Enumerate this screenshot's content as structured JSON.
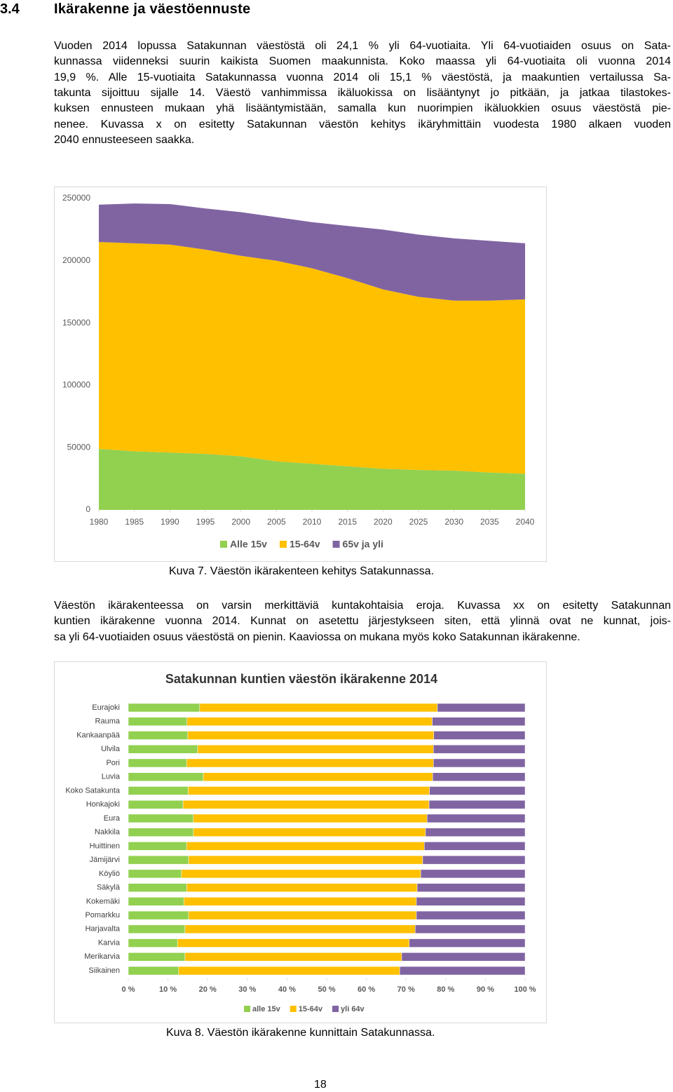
{
  "header": {
    "number": "3.4",
    "title": "Ikärakenne ja väestöennuste"
  },
  "paragraphs": [
    [
      "Vuoden 2014 lopussa Satakunnan väestöstä oli 24,1 % yli 64-vuotiaita. Yli 64-vuotiaiden osuus on Sata-",
      "kunnassa viidenneksi suurin kaikista Suomen maakunnista. Koko maassa yli 64-vuotiaita oli vuonna 2014",
      "19,9 %. Alle 15-vuotiaita Satakunnassa vuonna 2014 oli 15,1 % väestöstä, ja maakuntien vertailussa Sa-",
      "takunta sijoittuu sijalle 14. Väestö vanhimmissa ikäluokissa on lisääntynyt jo pitkään, ja jatkaa tilastokes-",
      "kuksen ennusteen mukaan yhä lisääntymistään, samalla kun nuorimpien ikäluokkien osuus väestöstä pie-",
      "nenee. Kuvassa x on esitetty Satakunnan väestön kehitys ikäryhmittäin vuodesta 1980 alkaen vuoden",
      "2040 ennusteeseen saakka."
    ],
    [
      "Väestön ikärakenteessa on varsin merkittäviä kuntakohtaisia eroja. Kuvassa xx on esitetty Satakunnan",
      "kuntien ikärakenne vuonna 2014. Kunnat on asetettu järjestykseen siten, että ylinnä ovat ne kunnat, jois-",
      "sa yli 64-vuotiaiden osuus väestöstä on pienin. Kaaviossa on mukana myös koko Satakunnan ikärakenne."
    ]
  ],
  "chart_data": [
    {
      "type": "area",
      "stacked": true,
      "x": [
        1980,
        1985,
        1990,
        1995,
        2000,
        2005,
        2010,
        2015,
        2020,
        2025,
        2030,
        2035,
        2040
      ],
      "xlim": [
        1980,
        2040
      ],
      "xticks": [
        1980,
        1985,
        1990,
        1995,
        2000,
        2005,
        2010,
        2015,
        2020,
        2025,
        2030,
        2035,
        2040
      ],
      "ylim": [
        0,
        250000
      ],
      "yticks": [
        0,
        50000,
        100000,
        150000,
        200000,
        250000
      ],
      "grid": false,
      "legend": "bottom",
      "series": [
        {
          "name": "Alle 15v",
          "color": "#92d050",
          "values": [
            49000,
            47000,
            46000,
            45000,
            43000,
            39000,
            37000,
            35000,
            33000,
            32000,
            31500,
            30000,
            29000
          ]
        },
        {
          "name": "15-64v",
          "color": "#ffc000",
          "values": [
            166000,
            167000,
            167000,
            164000,
            161000,
            161000,
            157000,
            151000,
            144000,
            139000,
            136500,
            138000,
            140000
          ]
        },
        {
          "name": "65v ja yli",
          "color": "#8064a2",
          "values": [
            30000,
            32000,
            32500,
            33000,
            35000,
            35000,
            37000,
            42000,
            48000,
            50000,
            50000,
            48000,
            45000
          ]
        }
      ]
    },
    {
      "type": "bar",
      "orientation": "horizontal",
      "stacked": true,
      "title": "Satakunnan kuntien väestön ikärakenne 2014",
      "categories": [
        "Eurajoki",
        "Rauma",
        "Kankaanpää",
        "Ulvila",
        "Pori",
        "Luvia",
        "Koko Satakunta",
        "Honkajoki",
        "Eura",
        "Nakkila",
        "Huittinen",
        "Jämijärvi",
        "Köyliö",
        "Säkylä",
        "Kokemäki",
        "Pomarkku",
        "Harjavalta",
        "Karvia",
        "Merikarvia",
        "Siikainen"
      ],
      "xlim": [
        0,
        100
      ],
      "xticks": [
        {
          "value": 0,
          "label": "0 %"
        },
        {
          "value": 10,
          "label": "10 %"
        },
        {
          "value": 20,
          "label": "20 %"
        },
        {
          "value": 30,
          "label": "30 %"
        },
        {
          "value": 40,
          "label": "40 %"
        },
        {
          "value": 50,
          "label": "50 %"
        },
        {
          "value": 60,
          "label": "60 %"
        },
        {
          "value": 70,
          "label": "70 %"
        },
        {
          "value": 80,
          "label": "80 %"
        },
        {
          "value": 90,
          "label": "90 %"
        },
        {
          "value": 100,
          "label": "100 %"
        }
      ],
      "grid": false,
      "legend": "bottom",
      "series": [
        {
          "name": "alle 15v",
          "color": "#92d050",
          "values": [
            18.0,
            14.8,
            15.0,
            17.5,
            14.7,
            18.9,
            15.1,
            13.8,
            16.4,
            16.4,
            14.7,
            15.2,
            13.4,
            14.7,
            14.0,
            15.2,
            14.3,
            12.4,
            14.3,
            12.7
          ]
        },
        {
          "name": "15-64v",
          "color": "#ffc000",
          "values": [
            59.9,
            61.8,
            62.0,
            59.4,
            62.2,
            57.8,
            60.8,
            62.0,
            58.9,
            58.5,
            59.9,
            59.0,
            60.3,
            58.1,
            58.6,
            57.4,
            58.0,
            58.4,
            54.6,
            55.7
          ]
        },
        {
          "name": "yli 64v",
          "color": "#8064a2",
          "values": [
            22.1,
            23.4,
            23.0,
            23.1,
            23.1,
            23.3,
            24.1,
            24.2,
            24.7,
            25.1,
            25.4,
            25.8,
            26.3,
            27.2,
            27.4,
            27.4,
            27.7,
            29.2,
            31.1,
            31.6
          ]
        }
      ]
    }
  ],
  "captions": [
    "Kuva 7. Väestön ikärakenteen kehitys Satakunnassa.",
    "Kuva 8. Väestön ikärakenne kunnittain Satakunnassa."
  ],
  "page_number": "18"
}
